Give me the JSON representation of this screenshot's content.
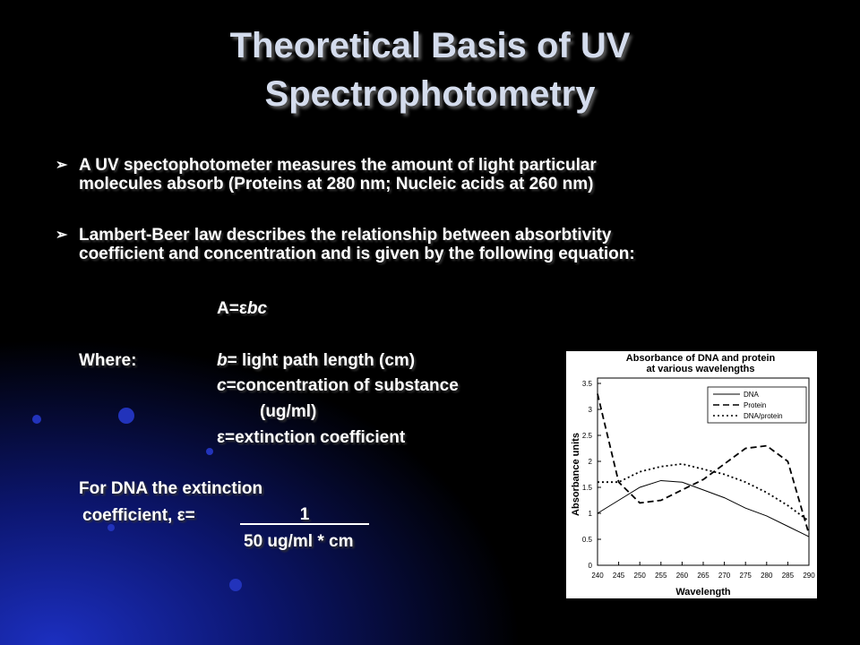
{
  "slide": {
    "title_lines": [
      "Theoretical Basis of UV",
      "Spectrophotometry"
    ],
    "bullets": [
      [
        "A UV spectophotometer measures the amount of light particular",
        "molecules absorb (Proteins at 280 nm; Nucleic acids at 260 nm)"
      ],
      [
        "Lambert-Beer law describes the relationship between absorbtivity",
        "coefficient and concentration and is given by the following equation:"
      ]
    ],
    "equation": {
      "text": "A=ε",
      "var": "bc"
    },
    "where_label": "Where:",
    "where_items": [
      {
        "var": "b",
        "text": "= light path length (cm)"
      },
      {
        "var": "c",
        "text": "=concentration of substance"
      },
      {
        "var": "",
        "text": "(ug/ml)"
      },
      {
        "var": "",
        "text": "ε=extinction coefficient"
      }
    ],
    "dna_note": {
      "line1": "For DNA the extinction",
      "line2": "coefficient, ε=",
      "numerator": "1",
      "denominator": "50 ug/ml * cm"
    }
  },
  "chart_data": {
    "type": "line",
    "title_lines": [
      "Absorbance of DNA and protein",
      "at various wavelengths"
    ],
    "xlabel": "Wavelength",
    "ylabel": "Absorbance units",
    "x": [
      240,
      245,
      250,
      255,
      260,
      265,
      270,
      275,
      280,
      285,
      290
    ],
    "series": [
      {
        "name": "DNA",
        "color": "#000000",
        "style": "solid",
        "values": [
          1.0,
          1.25,
          1.5,
          1.63,
          1.6,
          1.45,
          1.3,
          1.1,
          0.95,
          0.75,
          0.55
        ]
      },
      {
        "name": "Protein",
        "color": "#000000",
        "style": "dashed",
        "values": [
          3.3,
          1.6,
          1.2,
          1.25,
          1.45,
          1.65,
          1.95,
          2.25,
          2.3,
          2.0,
          0.6
        ]
      },
      {
        "name": "DNA/protein",
        "color": "#000000",
        "style": "dotted",
        "values": [
          1.6,
          1.6,
          1.8,
          1.9,
          1.95,
          1.85,
          1.75,
          1.6,
          1.4,
          1.15,
          0.85
        ]
      }
    ],
    "xlim": [
      240,
      290
    ],
    "xticks": [
      240,
      245,
      250,
      255,
      260,
      265,
      270,
      275,
      280,
      285,
      290
    ],
    "ylim": [
      0,
      3.5
    ],
    "yticks": [
      0,
      0.5,
      1,
      1.5,
      2,
      2.5,
      3,
      3.5
    ],
    "legend": "upper-right"
  }
}
